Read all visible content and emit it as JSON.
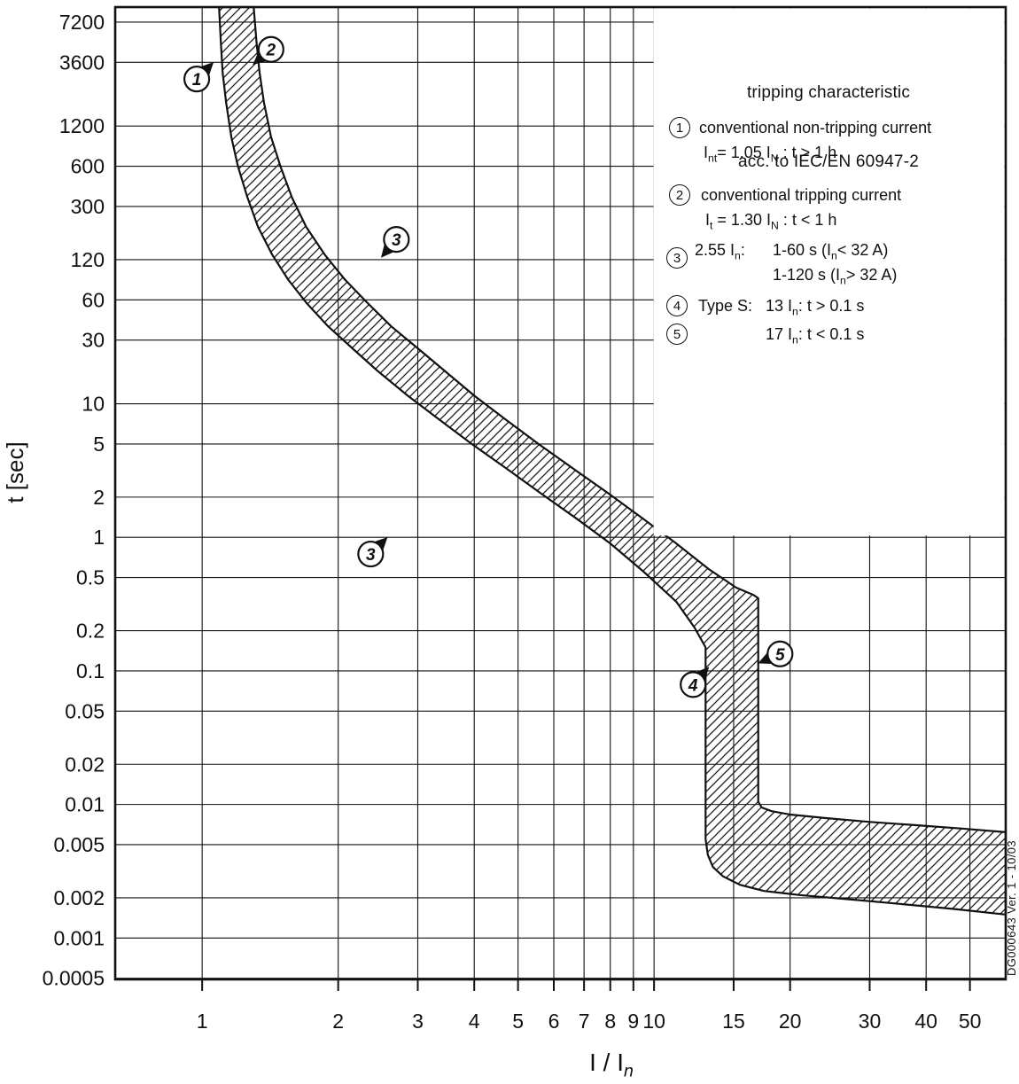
{
  "legend": {
    "title_line1": "tripping characteristic",
    "title_line2": "acc. to IEC/EN 60947-2",
    "item1": {
      "num": "1",
      "line1": [
        {
          "t": "conventional non-tripping current"
        }
      ],
      "line2": [
        {
          "t": "I"
        },
        {
          "t": "nt",
          "sub": true
        },
        {
          "t": "= 1.05 I"
        },
        {
          "t": "N",
          "sub": true
        },
        {
          "t": " : t > 1 h"
        }
      ]
    },
    "item2": {
      "num": "2",
      "line1": [
        {
          "t": "conventional tripping current"
        }
      ],
      "line2": [
        {
          "t": "I"
        },
        {
          "t": "t",
          "sub": true
        },
        {
          "t": " = 1.30 I"
        },
        {
          "t": "N",
          "sub": true
        },
        {
          "t": " : t < 1 h"
        }
      ]
    },
    "item3": {
      "num": "3",
      "label": [
        {
          "t": "2.55 I"
        },
        {
          "t": "n",
          "sub": true
        },
        {
          "t": ":"
        }
      ],
      "line1": [
        {
          "t": "1-60 s (I"
        },
        {
          "t": "n",
          "sub": true
        },
        {
          "t": "< 32 A)"
        }
      ],
      "line2": [
        {
          "t": "1-120 s (I"
        },
        {
          "t": "n",
          "sub": true
        },
        {
          "t": "> 32 A)"
        }
      ]
    },
    "item4": {
      "num": "4",
      "label": [
        {
          "t": "Type S:"
        }
      ],
      "line1": [
        {
          "t": "13 I"
        },
        {
          "t": "n",
          "sub": true
        },
        {
          "t": ": t > 0.1 s"
        }
      ]
    },
    "item5": {
      "num": "5",
      "line1": [
        {
          "t": "17 I"
        },
        {
          "t": "n",
          "sub": true
        },
        {
          "t": ": t < 0.1 s"
        }
      ]
    }
  },
  "axes": {
    "x_title": [
      {
        "t": "I / I"
      },
      {
        "t": "n",
        "sub": true,
        "i": true
      }
    ],
    "y_title": "t [sec]"
  },
  "watermark": "DG000643   Ver. 1 - 10/03",
  "chart_data": {
    "type": "area",
    "title": "tripping characteristic acc. to IEC/EN 60947-2",
    "xlabel": "I / In",
    "ylabel": "t [sec]",
    "x_scale": "log",
    "y_scale": "log",
    "xlim": [
      0.642,
      60
    ],
    "ylim": [
      0.00049,
      9330
    ],
    "x_ticks": [
      1,
      2,
      3,
      4,
      5,
      6,
      7,
      8,
      9,
      10,
      15,
      20,
      30,
      40,
      50
    ],
    "y_ticks": [
      7200,
      3600,
      1200,
      600,
      300,
      120,
      60,
      30,
      10,
      5,
      2,
      1,
      0.5,
      0.2,
      0.1,
      0.05,
      0.02,
      0.01,
      0.005,
      0.002,
      0.001,
      0.0005
    ],
    "grid": "on",
    "legend_position": "top-right",
    "legend_clear_region": {
      "x_from": 10,
      "x_to": 60,
      "t_from": 1,
      "t_to": 9330
    },
    "band": {
      "name": "tripping-characteristic-band",
      "lower": [
        [
          1.09,
          9330
        ],
        [
          1.1,
          5000
        ],
        [
          1.11,
          3000
        ],
        [
          1.13,
          1800
        ],
        [
          1.16,
          1000
        ],
        [
          1.2,
          600
        ],
        [
          1.26,
          350
        ],
        [
          1.33,
          210
        ],
        [
          1.43,
          130
        ],
        [
          1.55,
          85
        ],
        [
          1.7,
          57
        ],
        [
          1.9,
          38
        ],
        [
          2.15,
          26
        ],
        [
          2.45,
          17.5
        ],
        [
          2.85,
          11.5
        ],
        [
          3.35,
          7.6
        ],
        [
          3.95,
          5.0
        ],
        [
          4.7,
          3.3
        ],
        [
          5.6,
          2.15
        ],
        [
          6.7,
          1.4
        ],
        [
          8.0,
          0.9
        ],
        [
          9.5,
          0.55
        ],
        [
          11.2,
          0.33
        ],
        [
          12.3,
          0.21
        ],
        [
          13.0,
          0.15
        ],
        [
          13.0,
          0.0055
        ],
        [
          13.15,
          0.0042
        ],
        [
          13.5,
          0.0034
        ],
        [
          14.2,
          0.0029
        ],
        [
          15.5,
          0.0025
        ],
        [
          17.5,
          0.00225
        ],
        [
          21,
          0.0021
        ],
        [
          27,
          0.00195
        ],
        [
          35,
          0.0018
        ],
        [
          46,
          0.00165
        ],
        [
          60,
          0.0015
        ]
      ],
      "upper": [
        [
          1.3,
          9330
        ],
        [
          1.32,
          5000
        ],
        [
          1.34,
          3000
        ],
        [
          1.37,
          1800
        ],
        [
          1.42,
          1000
        ],
        [
          1.49,
          600
        ],
        [
          1.58,
          350
        ],
        [
          1.7,
          210
        ],
        [
          1.87,
          130
        ],
        [
          2.07,
          85
        ],
        [
          2.32,
          57
        ],
        [
          2.62,
          38
        ],
        [
          3.0,
          26
        ],
        [
          3.45,
          17.5
        ],
        [
          4.0,
          11.5
        ],
        [
          4.7,
          7.6
        ],
        [
          5.55,
          5.0
        ],
        [
          6.6,
          3.3
        ],
        [
          7.9,
          2.15
        ],
        [
          9.4,
          1.4
        ],
        [
          11.2,
          0.9
        ],
        [
          13.2,
          0.58
        ],
        [
          15.2,
          0.42
        ],
        [
          16.6,
          0.37
        ],
        [
          17.0,
          0.35
        ],
        [
          17.0,
          0.0105
        ],
        [
          17.3,
          0.0095
        ],
        [
          18.2,
          0.0089
        ],
        [
          20,
          0.0084
        ],
        [
          24,
          0.0079
        ],
        [
          30,
          0.0074
        ],
        [
          38,
          0.007
        ],
        [
          48,
          0.0066
        ],
        [
          60,
          0.0062
        ]
      ]
    },
    "markers": [
      {
        "label": "1",
        "x": 0.973,
        "t": 2700,
        "angle": 45
      },
      {
        "label": "2",
        "x": 1.42,
        "t": 4500,
        "angle": 220
      },
      {
        "label": "3",
        "x": 2.69,
        "t": 170,
        "angle": 230
      },
      {
        "label": "3",
        "x": 2.36,
        "t": 0.75,
        "angle": 45
      },
      {
        "label": "4",
        "x": 12.2,
        "t": 0.079,
        "angle": 48
      },
      {
        "label": "5",
        "x": 19.0,
        "t": 0.134,
        "angle": 203
      }
    ]
  }
}
